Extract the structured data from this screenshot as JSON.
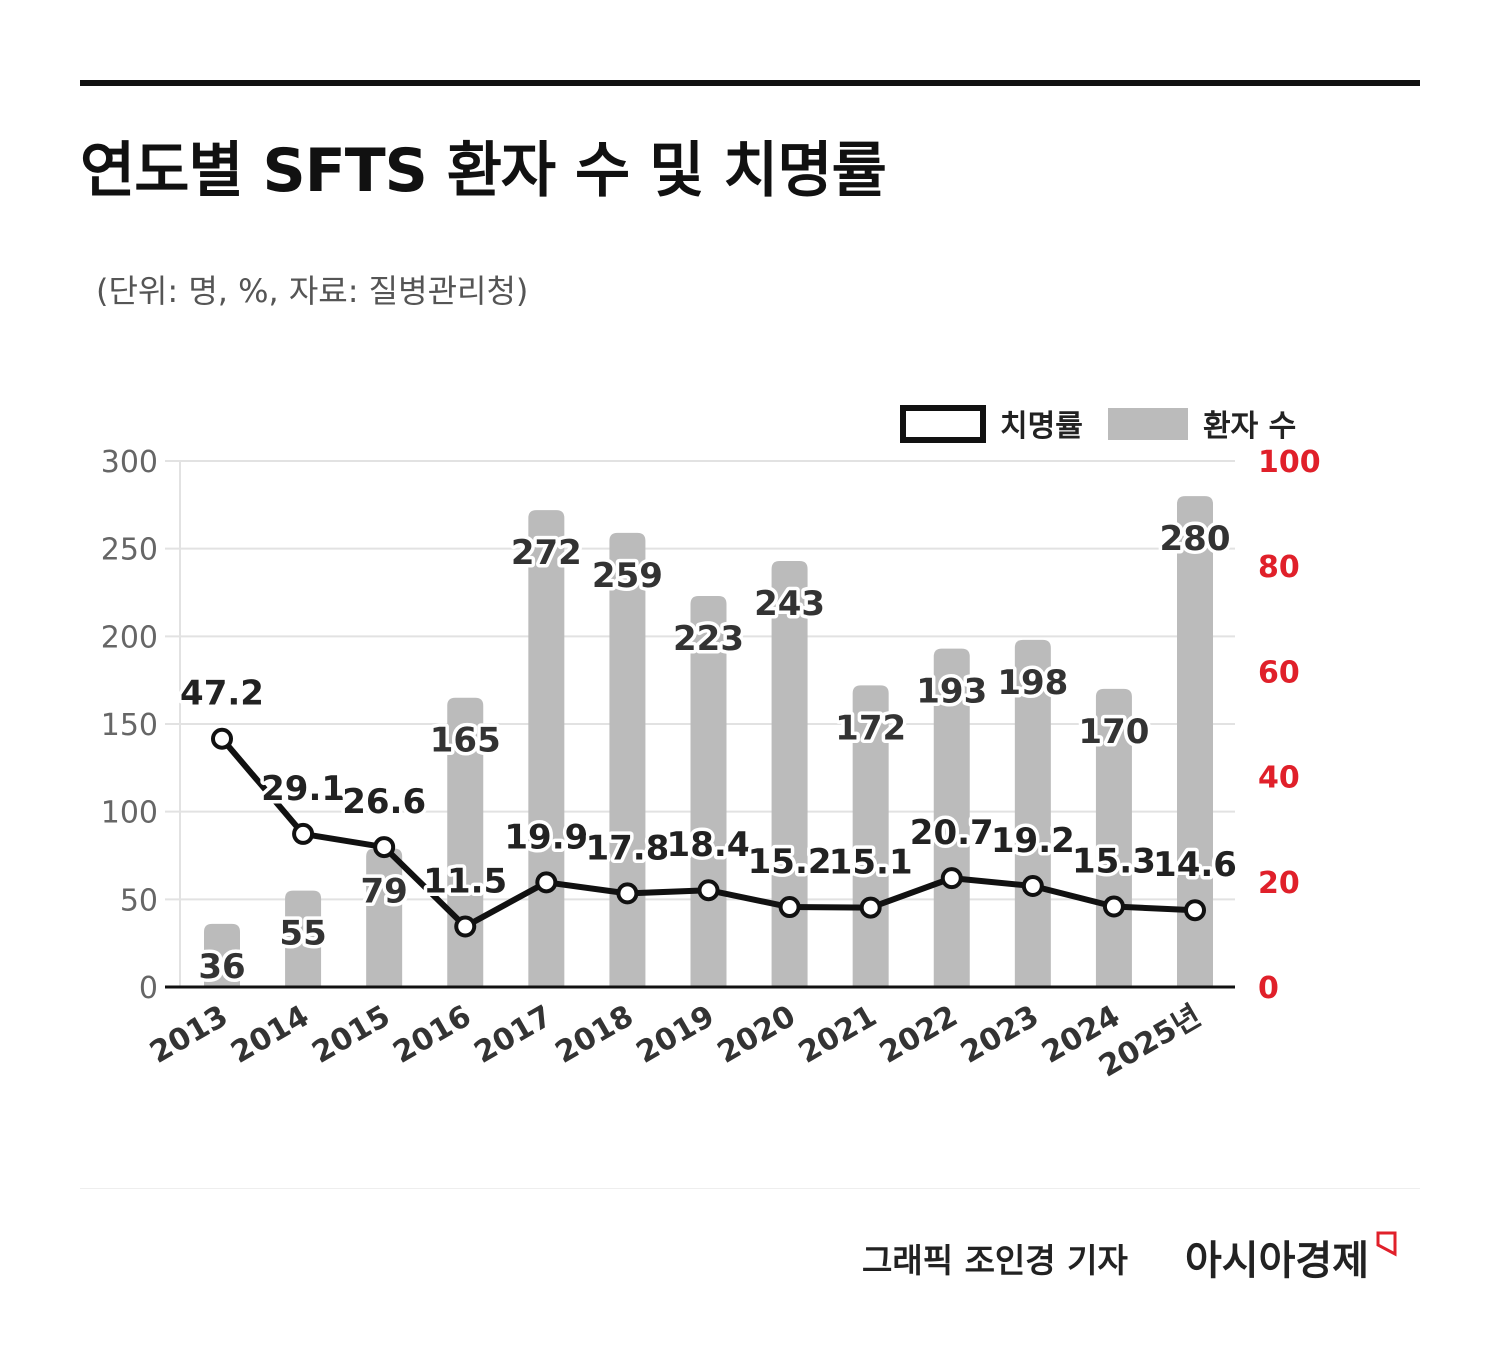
{
  "header": {
    "title": "연도별 SFTS 환자 수 및 치명률",
    "subtitle": "(단위: 명, %, 자료: 질병관리청)"
  },
  "footer": {
    "credit": "그래픽  조인경 기자",
    "logo": "아시아경제"
  },
  "chart_data": {
    "type": "bar+line",
    "categories": [
      "2013",
      "2014",
      "2015",
      "2016",
      "2017",
      "2018",
      "2019",
      "2020",
      "2021",
      "2022",
      "2023",
      "2024",
      "2025년"
    ],
    "series": [
      {
        "name": "환자 수",
        "type": "bar",
        "axis": "left",
        "color": "#bbbbbb",
        "values": [
          36,
          55,
          79,
          165,
          272,
          259,
          223,
          243,
          172,
          193,
          198,
          170,
          280
        ]
      },
      {
        "name": "치명률",
        "type": "line",
        "axis": "right",
        "color": "#111111",
        "values": [
          47.2,
          29.1,
          26.6,
          11.5,
          19.9,
          17.8,
          18.4,
          15.2,
          15.1,
          20.7,
          19.2,
          15.3,
          14.6
        ]
      }
    ],
    "left_axis": {
      "ylim": [
        0,
        300
      ],
      "ticks": [
        "0",
        "50",
        "100",
        "150",
        "200",
        "250",
        "300"
      ],
      "color": "#666666"
    },
    "right_axis": {
      "ylim": [
        0,
        100
      ],
      "ticks": [
        "0",
        "20",
        "40",
        "60",
        "80",
        "100"
      ],
      "color": "#e0202a"
    },
    "grid": true,
    "legend": "top-right"
  }
}
